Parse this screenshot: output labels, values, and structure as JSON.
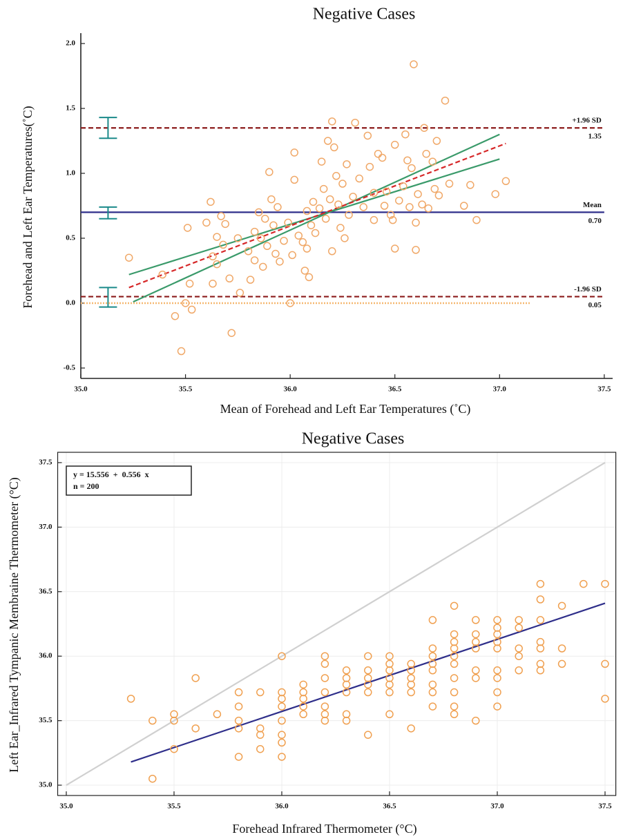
{
  "chart_data": [
    {
      "type": "scatter",
      "title": "Negative Cases",
      "x_label": "Mean of Forehead and Left Ear Temperatures (˚C)",
      "y_label": "Forehead and Left Ear Temperatures(˚C)",
      "xlim": [
        35,
        37.54
      ],
      "ylim": [
        -0.58,
        2.08
      ],
      "xticks": [
        {
          "value": 35,
          "label": "35.0"
        },
        {
          "value": 35.5,
          "label": "35.5"
        },
        {
          "value": 36,
          "label": "36.0"
        },
        {
          "value": 36.5,
          "label": "36.5"
        },
        {
          "value": 37,
          "label": "37.0"
        },
        {
          "value": 37.5,
          "label": "37.5"
        }
      ],
      "yticks": [
        {
          "value": -0.5,
          "label": "-0.5"
        },
        {
          "value": 0,
          "label": "0.0"
        },
        {
          "value": 0.5,
          "label": "0.5"
        },
        {
          "value": 1,
          "label": "1.0"
        },
        {
          "value": 1.5,
          "label": "1.5"
        },
        {
          "value": 2,
          "label": "2.0"
        }
      ],
      "grid": false,
      "series": [
        {
          "color": "#f0a868",
          "x": [
            35.23,
            35.39,
            35.45,
            35.48,
            35.5,
            35.51,
            35.52,
            35.53,
            35.6,
            35.62,
            35.63,
            35.63,
            35.65,
            35.65,
            35.67,
            35.68,
            35.69,
            35.71,
            35.72,
            35.75,
            35.76,
            35.8,
            35.81,
            35.83,
            35.83,
            35.85,
            35.86,
            35.87,
            35.88,
            35.89,
            35.9,
            35.91,
            35.92,
            35.93,
            35.94,
            35.95,
            35.97,
            35.99,
            36.0,
            36.01,
            36.02,
            36.02,
            36.04,
            36.06,
            36.07,
            36.08,
            36.08,
            36.09,
            36.1,
            36.11,
            36.12,
            36.14,
            36.15,
            36.16,
            36.17,
            36.18,
            36.19,
            36.2,
            36.2,
            36.21,
            36.22,
            36.23,
            36.24,
            36.25,
            36.26,
            36.27,
            36.28,
            36.3,
            36.31,
            36.33,
            36.35,
            36.37,
            36.38,
            36.4,
            36.4,
            36.42,
            36.44,
            36.45,
            36.46,
            36.48,
            36.49,
            36.5,
            36.5,
            36.52,
            36.54,
            36.55,
            36.56,
            36.57,
            36.58,
            36.59,
            36.6,
            36.6,
            36.61,
            36.63,
            36.64,
            36.65,
            36.66,
            36.68,
            36.69,
            36.7,
            36.71,
            36.74,
            36.76,
            36.83,
            36.86,
            36.89,
            36.98,
            37.03
          ],
          "values": [
            0.35,
            0.22,
            -0.1,
            -0.37,
            0,
            0.58,
            0.15,
            -0.05,
            0.62,
            0.78,
            0.36,
            0.15,
            0.51,
            0.3,
            0.67,
            0.45,
            0.61,
            0.19,
            -0.23,
            0.5,
            0.08,
            0.4,
            0.18,
            0.55,
            0.33,
            0.7,
            0.5,
            0.28,
            0.65,
            0.44,
            1.01,
            0.8,
            0.6,
            0.38,
            0.74,
            0.32,
            0.48,
            0.62,
            0,
            0.37,
            0.95,
            1.16,
            0.52,
            0.47,
            0.25,
            0.42,
            0.71,
            0.2,
            0.6,
            0.78,
            0.54,
            0.73,
            1.09,
            0.88,
            0.65,
            1.25,
            0.8,
            0.4,
            1.4,
            1.2,
            0.98,
            0.76,
            0.58,
            0.92,
            0.5,
            1.07,
            0.68,
            0.82,
            1.39,
            0.96,
            0.74,
            1.29,
            1.05,
            0.85,
            0.64,
            1.15,
            1.12,
            0.75,
            0.86,
            0.68,
            0.64,
            0.42,
            1.22,
            0.79,
            0.9,
            1.3,
            1.1,
            0.74,
            1.04,
            1.84,
            0.62,
            0.41,
            0.84,
            0.76,
            1.35,
            1.15,
            0.73,
            1.09,
            0.88,
            1.25,
            0.83,
            1.56,
            0.92,
            0.75,
            0.91,
            0.64,
            0.84,
            0.94
          ]
        }
      ],
      "reference_lines": [
        {
          "name": "+1.96 SD",
          "value": 1.35,
          "label": "1.35",
          "color": "#8b1a1a",
          "dash": "dashed"
        },
        {
          "name": "Mean",
          "value": 0.7,
          "label": "0.70",
          "color": "#2e2e8a",
          "dash": "solid"
        },
        {
          "name": "-1.96 SD",
          "value": 0.05,
          "label": "0.05",
          "color": "#8b1a1a",
          "dash": "dashed"
        }
      ],
      "fit_lines": [
        {
          "color": "#f5b870",
          "dash": "dotted",
          "x": [
            35,
            37.15
          ],
          "values": [
            0,
            0
          ]
        },
        {
          "color": "#3a9a6a",
          "dash": "solid",
          "x": [
            35.23,
            37.0
          ],
          "values": [
            0.22,
            1.11
          ]
        },
        {
          "color": "#3a9a6a",
          "dash": "solid",
          "x": [
            35.25,
            37.0
          ],
          "values": [
            0.01,
            1.3
          ]
        },
        {
          "color": "#d62728",
          "dash": "dashed",
          "x": [
            35.23,
            37.03
          ],
          "values": [
            0.12,
            1.23
          ]
        }
      ],
      "error_bars": {
        "color": "#1a8a8a",
        "items": [
          {
            "x": 35.13,
            "low": 1.27,
            "high": 1.43
          },
          {
            "x": 35.13,
            "low": 0.65,
            "high": 0.74
          },
          {
            "x": 35.13,
            "low": -0.03,
            "high": 0.12
          }
        ]
      }
    },
    {
      "type": "scatter",
      "title": "Negative Cases",
      "x_label": "Forehead Infrared Thermometer (°C)",
      "y_label": "Left Ear_Infrared Tympanic Membraine Thermometer (°C)",
      "xlim": [
        34.96,
        37.55
      ],
      "ylim": [
        34.92,
        37.58
      ],
      "xticks": [
        {
          "value": 35,
          "label": "35.0"
        },
        {
          "value": 35.5,
          "label": "35.5"
        },
        {
          "value": 36,
          "label": "36.0"
        },
        {
          "value": 36.5,
          "label": "36.5"
        },
        {
          "value": 37,
          "label": "37.0"
        },
        {
          "value": 37.5,
          "label": "37.5"
        }
      ],
      "yticks": [
        {
          "value": 35,
          "label": "35.0"
        },
        {
          "value": 35.5,
          "label": "35.5"
        },
        {
          "value": 36,
          "label": "36.0"
        },
        {
          "value": 36.5,
          "label": "36.5"
        },
        {
          "value": 37,
          "label": "37.0"
        },
        {
          "value": 37.5,
          "label": "37.5"
        }
      ],
      "grid": true,
      "annotations": [
        "y = 15.556  +  0.556  x",
        "n = 200"
      ],
      "series": [
        {
          "color": "#f0a050",
          "x": [
            35.3,
            35.4,
            35.4,
            35.5,
            35.5,
            35.5,
            35.6,
            35.6,
            35.7,
            35.8,
            35.8,
            35.8,
            35.8,
            35.8,
            35.9,
            35.9,
            35.9,
            35.9,
            36,
            36,
            36,
            36,
            36,
            36,
            36,
            36,
            36.1,
            36.1,
            36.1,
            36.1,
            36.1,
            36.2,
            36.2,
            36.2,
            36.2,
            36.2,
            36.2,
            36.2,
            36.3,
            36.3,
            36.3,
            36.3,
            36.3,
            36.3,
            36.4,
            36.4,
            36.4,
            36.4,
            36.4,
            36.4,
            36.5,
            36.5,
            36.5,
            36.5,
            36.5,
            36.5,
            36.5,
            36.6,
            36.6,
            36.6,
            36.6,
            36.6,
            36.6,
            36.7,
            36.7,
            36.7,
            36.7,
            36.7,
            36.7,
            36.7,
            36.7,
            36.8,
            36.8,
            36.8,
            36.8,
            36.8,
            36.8,
            36.8,
            36.8,
            36.8,
            36.8,
            36.9,
            36.9,
            36.9,
            36.9,
            36.9,
            36.9,
            36.9,
            37,
            37,
            37,
            37,
            37,
            37,
            37,
            37,
            37,
            37.1,
            37.1,
            37.1,
            37.1,
            37.1,
            37.2,
            37.2,
            37.2,
            37.2,
            37.2,
            37.2,
            37.2,
            37.3,
            37.3,
            37.3,
            37.4,
            37.5,
            37.5,
            37.5
          ],
          "values": [
            35.67,
            35.5,
            35.05,
            35.55,
            35.5,
            35.28,
            35.83,
            35.44,
            35.55,
            35.72,
            35.61,
            35.5,
            35.44,
            35.22,
            35.72,
            35.44,
            35.39,
            35.28,
            36,
            35.72,
            35.67,
            35.61,
            35.5,
            35.39,
            35.33,
            35.22,
            35.78,
            35.72,
            35.67,
            35.61,
            35.55,
            36,
            35.94,
            35.83,
            35.72,
            35.61,
            35.55,
            35.5,
            35.89,
            35.83,
            35.78,
            35.72,
            35.55,
            35.5,
            36,
            35.89,
            35.83,
            35.78,
            35.72,
            35.39,
            36,
            35.94,
            35.89,
            35.83,
            35.78,
            35.72,
            35.55,
            35.94,
            35.89,
            35.83,
            35.78,
            35.72,
            35.44,
            36.28,
            36.06,
            36,
            35.94,
            35.89,
            35.78,
            35.72,
            35.61,
            36.39,
            36.17,
            36.11,
            36.06,
            36,
            35.94,
            35.83,
            35.72,
            35.61,
            35.55,
            36.28,
            36.17,
            36.11,
            36.06,
            35.89,
            35.83,
            35.5,
            36.28,
            36.22,
            36.17,
            36.11,
            36.06,
            35.89,
            35.83,
            35.72,
            35.61,
            36.28,
            36.22,
            36.06,
            36,
            35.89,
            36.56,
            36.44,
            36.28,
            36.11,
            36.06,
            35.94,
            35.89,
            36.39,
            36.06,
            35.94,
            36.56,
            36.56,
            35.94,
            35.67
          ]
        }
      ],
      "fit_lines": [
        {
          "color": "#d0d0d0",
          "dash": "solid",
          "x": [
            35,
            37.5
          ],
          "values": [
            35,
            37.5
          ]
        },
        {
          "color": "#2e2e8a",
          "dash": "solid",
          "x": [
            35.3,
            37.5
          ],
          "values": [
            35.18,
            36.41
          ]
        }
      ]
    }
  ]
}
